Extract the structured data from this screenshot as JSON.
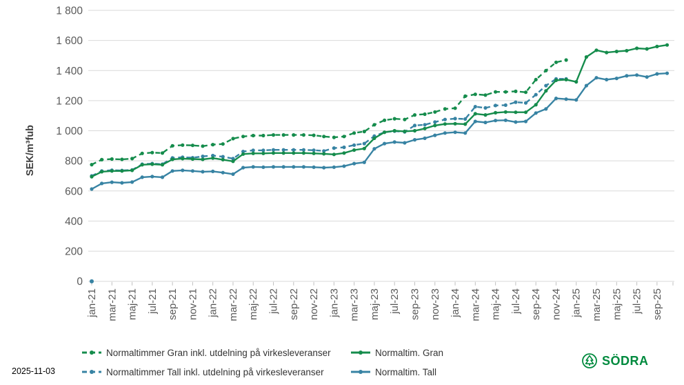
{
  "footer": {
    "date": "2025-11-03"
  },
  "logo": {
    "text": "SÖDRA",
    "color": "#008a3e"
  },
  "legend": {
    "items": [
      {
        "label": "Normaltimmer Gran inkl. utdelning på virkesleveranser",
        "series": 0
      },
      {
        "label": "Normaltim. Gran",
        "series": 1
      },
      {
        "label": "Normaltimmer Tall inkl. utdelning på virkesleveranser",
        "series": 2
      },
      {
        "label": "Normaltim. Tall",
        "series": 3
      }
    ]
  },
  "chart_data": {
    "type": "line",
    "title": "",
    "xlabel": "",
    "ylabel": "SEK/m³fub",
    "ylim": [
      0,
      1800
    ],
    "y_tick_labels": [
      "0",
      "200",
      "400",
      "600",
      "800",
      "1 000",
      "1 200",
      "1 400",
      "1 600",
      "1 800"
    ],
    "y_tick_values": [
      0,
      200,
      400,
      600,
      800,
      1000,
      1200,
      1400,
      1600,
      1800
    ],
    "grid": true,
    "legend_position": "bottom",
    "months_total": 58,
    "x_tick_every": 2,
    "x_tick_labels": [
      "jan-21",
      "mar-21",
      "maj-21",
      "jul-21",
      "sep-21",
      "nov-21",
      "jan-22",
      "mar-22",
      "maj-22",
      "jul-22",
      "sep-22",
      "nov-22",
      "jan-23",
      "mar-23",
      "maj-23",
      "jul-23",
      "sep-23",
      "nov-23",
      "jan-24",
      "mar-24",
      "maj-24",
      "jul-24",
      "sep-24",
      "nov-24",
      "jan-25",
      "mar-25",
      "maj-25",
      "jul-25",
      "sep-25"
    ],
    "colors": {
      "green": "#158c4c",
      "blue": "#3783a3",
      "grid": "#d9d9d9",
      "tick": "#bfbfbf",
      "tick_text": "#595959",
      "axis_title": "#404040"
    },
    "zero_point": {
      "month_index": 0,
      "value": 0,
      "color": "#3783a3"
    },
    "series": [
      {
        "name": "Normaltimmer Gran inkl. utdelning på virkesleveranser",
        "color": "#158c4c",
        "dashed": true,
        "values": [
          775,
          808,
          812,
          810,
          815,
          850,
          855,
          852,
          900,
          905,
          903,
          898,
          908,
          912,
          948,
          962,
          968,
          968,
          972,
          972,
          972,
          972,
          970,
          962,
          956,
          962,
          985,
          995,
          1040,
          1070,
          1080,
          1075,
          1105,
          1110,
          1125,
          1145,
          1150,
          1230,
          1242,
          1237,
          1258,
          1258,
          1262,
          1256,
          1340,
          1400,
          1455,
          1470
        ]
      },
      {
        "name": "Normaltim. Gran",
        "color": "#158c4c",
        "dashed": false,
        "values": [
          695,
          728,
          733,
          733,
          737,
          774,
          778,
          774,
          810,
          815,
          812,
          810,
          818,
          808,
          797,
          845,
          850,
          850,
          852,
          852,
          852,
          852,
          850,
          847,
          843,
          852,
          872,
          882,
          950,
          990,
          1000,
          996,
          1000,
          1015,
          1035,
          1045,
          1047,
          1044,
          1113,
          1105,
          1120,
          1125,
          1123,
          1123,
          1173,
          1265,
          1335,
          1340,
          1325,
          1490,
          1535,
          1520,
          1527,
          1532,
          1548,
          1544,
          1560,
          1570
        ]
      },
      {
        "name": "Normaltimmer Tall inkl. utdelning på virkesleveranser",
        "color": "#3783a3",
        "dashed": true,
        "values": [
          700,
          733,
          738,
          736,
          740,
          778,
          782,
          778,
          820,
          824,
          821,
          830,
          835,
          828,
          815,
          862,
          870,
          870,
          873,
          873,
          873,
          873,
          871,
          866,
          885,
          890,
          905,
          915,
          965,
          990,
          998,
          993,
          1035,
          1040,
          1058,
          1075,
          1081,
          1078,
          1160,
          1152,
          1168,
          1170,
          1190,
          1185,
          1240,
          1300,
          1345,
          1345
        ]
      },
      {
        "name": "Normaltim. Tall",
        "color": "#3783a3",
        "dashed": false,
        "values": [
          613,
          650,
          658,
          654,
          659,
          691,
          696,
          691,
          733,
          737,
          733,
          728,
          730,
          722,
          712,
          755,
          760,
          758,
          760,
          760,
          760,
          760,
          758,
          755,
          758,
          765,
          782,
          790,
          880,
          915,
          925,
          920,
          940,
          950,
          970,
          985,
          990,
          985,
          1062,
          1055,
          1068,
          1070,
          1058,
          1062,
          1118,
          1145,
          1215,
          1210,
          1205,
          1300,
          1352,
          1340,
          1348,
          1365,
          1370,
          1357,
          1378,
          1382
        ]
      }
    ]
  }
}
